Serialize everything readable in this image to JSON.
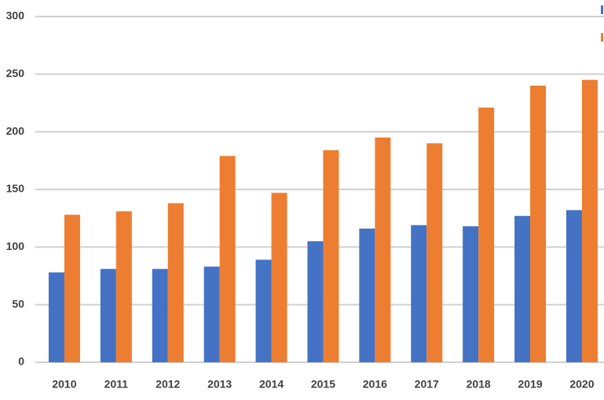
{
  "chart_data": {
    "type": "bar",
    "categories": [
      "2010",
      "2011",
      "2012",
      "2013",
      "2014",
      "2015",
      "2016",
      "2017",
      "2018",
      "2019",
      "2020"
    ],
    "series": [
      {
        "color": "#4472c4",
        "values": [
          78,
          81,
          81,
          83,
          89,
          105,
          116,
          119,
          118,
          127,
          132
        ]
      },
      {
        "color": "#ed7d31",
        "values": [
          128,
          131,
          138,
          179,
          147,
          184,
          195,
          190,
          221,
          240,
          245
        ]
      }
    ],
    "ylim": [
      0,
      300
    ],
    "yticks": [
      0,
      50,
      100,
      150,
      200,
      250,
      300
    ],
    "grid": true
  }
}
